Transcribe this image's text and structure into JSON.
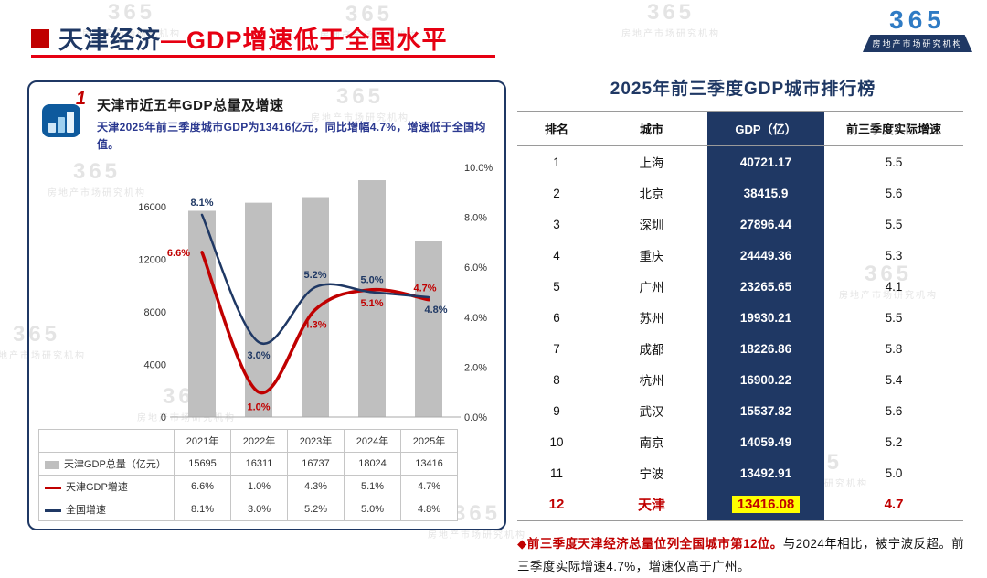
{
  "header": {
    "title_prefix": "天津经济",
    "title_highlight": "—GDP增速低于全国水平"
  },
  "logo": {
    "mark": "365",
    "banner": "房地产市场研究机构"
  },
  "watermark": {
    "logo_text": "365",
    "text": "房地产市场研究机构"
  },
  "left_panel": {
    "badge": "1",
    "title": "天津市近五年GDP总量及增速",
    "subtitle": "天津2025年前三季度城市GDP为13416亿元，同比增幅4.7%，增速低于全国均值。"
  },
  "chart_data": {
    "type": "bar",
    "overlay": "line",
    "title": "天津市近五年GDP总量及增速",
    "categories": [
      "2021年",
      "2022年",
      "2023年",
      "2024年",
      "2025年"
    ],
    "bar_series": {
      "name": "天津GDP总量（亿元）",
      "values": [
        15695,
        16311,
        16737,
        18024,
        13416
      ],
      "color": "#bfbfbf"
    },
    "line_series": [
      {
        "name": "天津GDP增速",
        "values": [
          6.6,
          1.0,
          4.3,
          5.1,
          4.7
        ],
        "color": "#c00000"
      },
      {
        "name": "全国增速",
        "values": [
          8.1,
          3.0,
          5.2,
          5.0,
          4.8
        ],
        "color": "#1f3864"
      }
    ],
    "left_axis": {
      "ticks": [
        0,
        4000,
        8000,
        12000,
        16000
      ],
      "scale_max": 19000
    },
    "right_axis": {
      "ticks": [
        "0.0%",
        "2.0%",
        "4.0%",
        "6.0%",
        "8.0%",
        "10.0%"
      ],
      "scale_max": 10
    },
    "legend_position": "table-below",
    "grid": false
  },
  "ranking": {
    "title": "2025年前三季度GDP城市排行榜",
    "headers": [
      "排名",
      "城市",
      "GDP（亿）",
      "前三季度实际增速"
    ],
    "rows": [
      {
        "rank": "1",
        "city": "上海",
        "gdp": "40721.17",
        "growth": "5.5"
      },
      {
        "rank": "2",
        "city": "北京",
        "gdp": "38415.9",
        "growth": "5.6"
      },
      {
        "rank": "3",
        "city": "深圳",
        "gdp": "27896.44",
        "growth": "5.5"
      },
      {
        "rank": "4",
        "city": "重庆",
        "gdp": "24449.36",
        "growth": "5.3"
      },
      {
        "rank": "5",
        "city": "广州",
        "gdp": "23265.65",
        "growth": "4.1"
      },
      {
        "rank": "6",
        "city": "苏州",
        "gdp": "19930.21",
        "growth": "5.5"
      },
      {
        "rank": "7",
        "city": "成都",
        "gdp": "18226.86",
        "growth": "5.8"
      },
      {
        "rank": "8",
        "city": "杭州",
        "gdp": "16900.22",
        "growth": "5.4"
      },
      {
        "rank": "9",
        "city": "武汉",
        "gdp": "15537.82",
        "growth": "5.6"
      },
      {
        "rank": "10",
        "city": "南京",
        "gdp": "14059.49",
        "growth": "5.2"
      },
      {
        "rank": "11",
        "city": "宁波",
        "gdp": "13492.91",
        "growth": "5.0"
      },
      {
        "rank": "12",
        "city": "天津",
        "gdp": "13416.08",
        "growth": "4.7",
        "highlight": true
      }
    ]
  },
  "note": {
    "bullet": "◆",
    "highlight": "前三季度天津经济总量位列全国城市第12位。",
    "rest": "与2024年相比，被宁波反超。前三季度实际增速4.7%，增速仅高于广州。"
  },
  "colors": {
    "navy": "#1f3864",
    "red": "#c00000",
    "red2": "#e60012",
    "gray": "#bfbfbf",
    "blue": "#2b3990",
    "yellow": "#ffff00",
    "logoblue": "#2f7bc4"
  }
}
